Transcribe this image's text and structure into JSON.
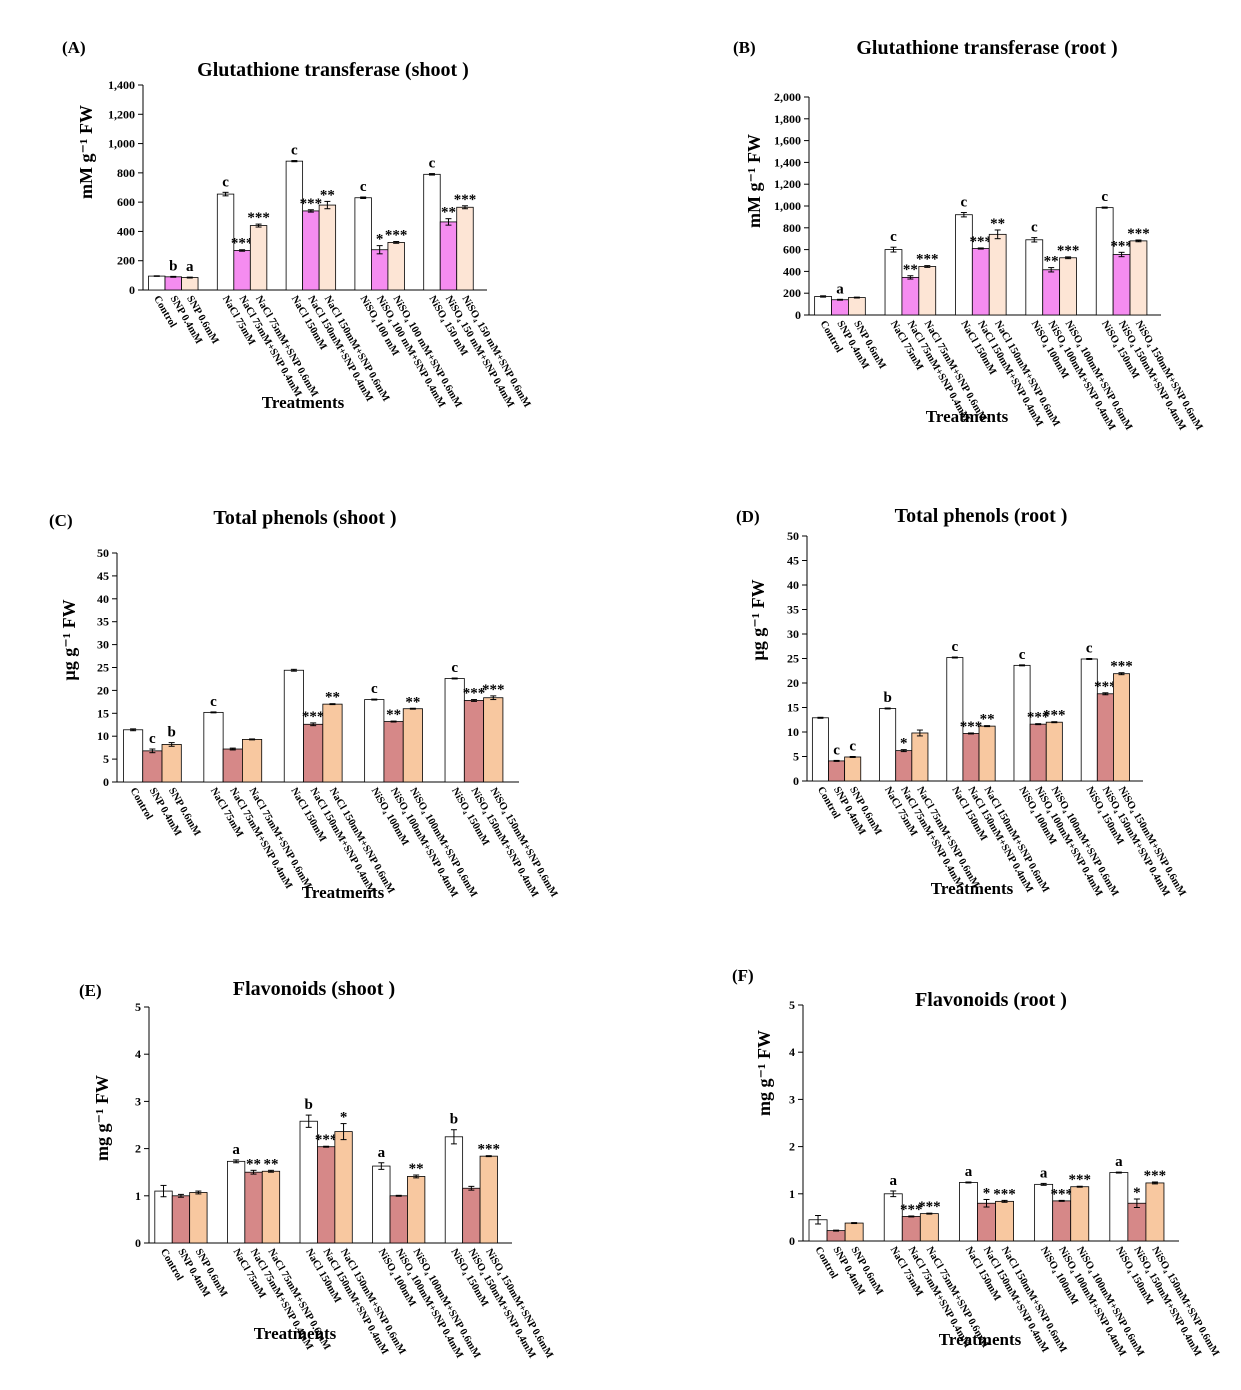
{
  "panel_letters": [
    "(A)",
    "(B)",
    "(C)",
    "(D)",
    "(E)",
    "(F)"
  ],
  "colors": {
    "control": "#ffffff",
    "shoot_mid": "#f58cf0",
    "shoot_high": "#fde5d5",
    "phen_mid": "#d68888",
    "phen_high": "#f8c8a0",
    "edge": "#000000"
  },
  "chart_data": [
    {
      "type": "bar",
      "panel": "(A)",
      "title": "Glutathione transferase  (shoot )",
      "ylabel": "mM g⁻¹ FW",
      "xlabel": "Treatments",
      "ylim": [
        0,
        1400
      ],
      "yticks": [
        0,
        200,
        400,
        600,
        800,
        "1,000",
        "1,200",
        "1,400"
      ],
      "categories": [
        "Control",
        "SNP 0.4mM",
        "SNP 0.6mM",
        "NaCl 75mM",
        "NaCl 75mM+SNP 0.4mM",
        "NaCl 75mM+SNP 0.6mM",
        "NaCl 150mM",
        "NaCl 150mM+SNP 0.4mM",
        "NaCl 150mM+SNP 0.6mM",
        "NiSO₄ 100 mM",
        "NiSO₄ 100 mM+SNP 0.4mM",
        "NiSO₄ 100 mM+SNP 0.6mM",
        "NiSO₄ 150 mM",
        "NiSO₄ 150 mM+SNP 0.4mM",
        "NiSO₄ 150 mM+SNP 0.6mM"
      ],
      "values": [
        95,
        90,
        85,
        655,
        270,
        440,
        880,
        540,
        580,
        630,
        275,
        325,
        790,
        465,
        565
      ],
      "errors": [
        2,
        3,
        3,
        12,
        5,
        10,
        4,
        8,
        25,
        5,
        28,
        6,
        5,
        22,
        10
      ],
      "annotations": [
        "",
        "b",
        "a",
        "c",
        "***",
        "***",
        "c",
        "***",
        "**",
        "c",
        "*",
        "***",
        "c",
        "**",
        "***"
      ]
    },
    {
      "type": "bar",
      "panel": "(B)",
      "title": "Glutathione transferase  (root )",
      "ylabel": "mM g⁻¹ FW",
      "xlabel": "Treatments",
      "ylim": [
        0,
        2000
      ],
      "yticks": [
        0,
        200,
        400,
        600,
        800,
        "1,000",
        "1,200",
        "1,400",
        "1,600",
        "1,800",
        "2,000"
      ],
      "categories": [
        "Control",
        "SNP 0.4mM",
        "SNP 0.6mM",
        "NaCl 75mM",
        "NaCl 75mM+SNP 0.4mM",
        "NaCl 75mM+SNP 0.6mM",
        "NaCl 150mM",
        "NaCl 150mM+SNP 0.4mM",
        "NaCl 150mM+SNP 0.6mM",
        "NiSO₄ 100mM",
        "NiSO₄ 100mM+SNP 0.4mM",
        "NiSO₄ 100mM+SNP 0.6mM",
        "NiSO₄ 150mM",
        "NiSO₄ 150mM+SNP 0.4mM",
        "NiSO₄ 150mM+SNP 0.6mM"
      ],
      "values": [
        170,
        140,
        160,
        600,
        345,
        445,
        920,
        610,
        740,
        690,
        415,
        525,
        985,
        555,
        680
      ],
      "errors": [
        6,
        4,
        4,
        22,
        15,
        8,
        20,
        5,
        40,
        20,
        20,
        8,
        5,
        20,
        8
      ],
      "annotations": [
        "",
        "a",
        "",
        "c",
        "**",
        "***",
        "c",
        "***",
        "**",
        "c",
        "**",
        "***",
        "c",
        "***",
        "***"
      ]
    },
    {
      "type": "bar",
      "panel": "(C)",
      "title": "Total phenols (shoot )",
      "ylabel": "µg g⁻¹  FW",
      "xlabel": "Treatments",
      "ylim": [
        0,
        50
      ],
      "yticks": [
        0,
        5,
        10,
        15,
        20,
        25,
        30,
        35,
        40,
        45,
        50
      ],
      "categories": [
        "Control",
        "SNP 0.4mM",
        "SNP 0.6mM",
        "NaCl 75mM",
        "NaCl 75mM+SNP 0.4mM",
        "NaCl 75mM+SNP 0.6mM",
        "NaCl 150mM",
        "NaCl 150mM+SNP 0.4mM",
        "NaCl 150mM+SNP 0.6mM",
        "NiSO₄ 100mM",
        "NiSO₄ 100mM+SNP 0.4mM",
        "NiSO₄ 100mM+SNP 0.6mM",
        "NiSO₄ 150mM",
        "NiSO₄ 150mM+SNP 0.4mM",
        "NiSO₄ 150mM+SNP 0.6mM"
      ],
      "values": [
        11.4,
        6.8,
        8.2,
        15.2,
        7.2,
        9.3,
        24.4,
        12.6,
        17.0,
        18.0,
        13.2,
        16.0,
        22.6,
        17.8,
        18.4
      ],
      "errors": [
        0.2,
        0.4,
        0.4,
        0.1,
        0.2,
        0.1,
        0.2,
        0.3,
        0.1,
        0.1,
        0.1,
        0.1,
        0.1,
        0.2,
        0.4
      ],
      "annotations": [
        "",
        "c",
        "b",
        "c",
        "",
        "",
        "",
        "***",
        "**",
        "c",
        "**",
        "**",
        "c",
        "***",
        "***"
      ]
    },
    {
      "type": "bar",
      "panel": "(D)",
      "title": "Total phenols (root )",
      "ylabel": "µg g⁻¹  FW",
      "xlabel": "Treatments",
      "ylim": [
        0,
        50
      ],
      "yticks": [
        0,
        5,
        10,
        15,
        20,
        25,
        30,
        35,
        40,
        45,
        50
      ],
      "categories": [
        "Control",
        "SNP 0.4mM",
        "SNP 0.6mM",
        "NaCl 75mM",
        "NaCl 75mM+SNP 0.4mM",
        "NaCl 75mM+SNP 0.6mM",
        "NaCl 150mM",
        "NaCl 150mM+SNP 0.4mM",
        "NaCl 150mM+SNP 0.6mM",
        "NiSO₄ 100mM",
        "NiSO₄ 100mM+SNP 0.4mM",
        "NiSO₄ 100mM+SNP 0.6mM",
        "NiSO₄ 150mM",
        "NiSO₄ 150mM+SNP 0.4mM",
        "NiSO₄ 150mM+SNP 0.6mM"
      ],
      "values": [
        12.9,
        4.1,
        4.9,
        14.8,
        6.2,
        9.8,
        25.2,
        9.7,
        11.2,
        23.6,
        11.6,
        12.0,
        24.9,
        17.8,
        21.9
      ],
      "errors": [
        0.1,
        0.1,
        0.1,
        0.1,
        0.2,
        0.6,
        0.1,
        0.1,
        0.1,
        0.1,
        0.1,
        0.1,
        0.1,
        0.2,
        0.2
      ],
      "annotations": [
        "",
        "c",
        "c",
        "b",
        "*",
        "",
        "c",
        "***",
        "**",
        "c",
        "***",
        "***",
        "c",
        "***",
        "***"
      ]
    },
    {
      "type": "bar",
      "panel": "(E)",
      "title": "Flavonoids (shoot )",
      "ylabel": "mg g⁻¹  FW",
      "xlabel": "Treatments",
      "ylim": [
        0,
        5
      ],
      "yticks": [
        0,
        1,
        2,
        3,
        4,
        5
      ],
      "categories": [
        "Control",
        "SNP 0.4mM",
        "SNP 0.6mM",
        "NaCl 75mM",
        "NaCl 75mM+SNP 0.4mM",
        "NaCl 75mM+SNP 0.6mM",
        "NaCl 150mM",
        "NaCl 150mM+SNP 0.4mM",
        "NaCl 150mM+SNP 0.6mM",
        "NiSO₄ 100mM",
        "NiSO₄ 100mM+SNP 0.4mM",
        "NiSO₄ 100mM+SNP 0.6mM",
        "NiSO₄ 150mM",
        "NiSO₄ 150mM+SNP 0.4mM",
        "NiSO₄ 150mM+SNP 0.6mM"
      ],
      "values": [
        1.1,
        1.0,
        1.07,
        1.73,
        1.5,
        1.52,
        2.58,
        2.04,
        2.36,
        1.63,
        1.0,
        1.41,
        2.25,
        1.16,
        1.84
      ],
      "errors": [
        0.12,
        0.03,
        0.03,
        0.03,
        0.04,
        0.02,
        0.13,
        0.01,
        0.17,
        0.07,
        0.01,
        0.03,
        0.15,
        0.04,
        0.01
      ],
      "annotations": [
        "",
        "",
        "",
        "a",
        "**",
        "**",
        "b",
        "***",
        "*",
        "a",
        "",
        "**",
        "b",
        "",
        "***"
      ]
    },
    {
      "type": "bar",
      "panel": "(F)",
      "title": "Flavonoids (root )",
      "ylabel": "mg g⁻¹  FW",
      "xlabel": "Treatments",
      "ylim": [
        0,
        5
      ],
      "yticks": [
        0,
        1,
        2,
        3,
        4,
        5
      ],
      "categories": [
        "Control",
        "SNP 0.4mM",
        "SNP 0.6mM",
        "NaCl 75mM",
        "NaCl 75mM+SNP 0.4mM",
        "NaCl 75mM+SNP 0.6mM",
        "NaCl 150mM",
        "NaCl 150mM+SNP 0.4mM",
        "NaCl 150mM+SNP 0.6mM",
        "NiSO₄ 100mM",
        "NiSO₄ 100mM+SNP 0.4mM",
        "NiSO₄ 100mM+SNP 0.6mM",
        "NiSO₄ 150mM",
        "NiSO₄ 150mM+SNP 0.4mM",
        "NiSO₄ 150mM+SNP 0.6mM"
      ],
      "values": [
        0.45,
        0.22,
        0.38,
        1.0,
        0.52,
        0.58,
        1.24,
        0.8,
        0.84,
        1.2,
        0.85,
        1.15,
        1.45,
        0.8,
        1.23
      ],
      "errors": [
        0.09,
        0.01,
        0.01,
        0.06,
        0.01,
        0.01,
        0.01,
        0.08,
        0.02,
        0.02,
        0.01,
        0.01,
        0.01,
        0.09,
        0.02
      ],
      "annotations": [
        "",
        "",
        "",
        "a",
        "***",
        "***",
        "a",
        "*",
        "***",
        "a",
        "***",
        "***",
        "a",
        "*",
        "***"
      ]
    }
  ]
}
